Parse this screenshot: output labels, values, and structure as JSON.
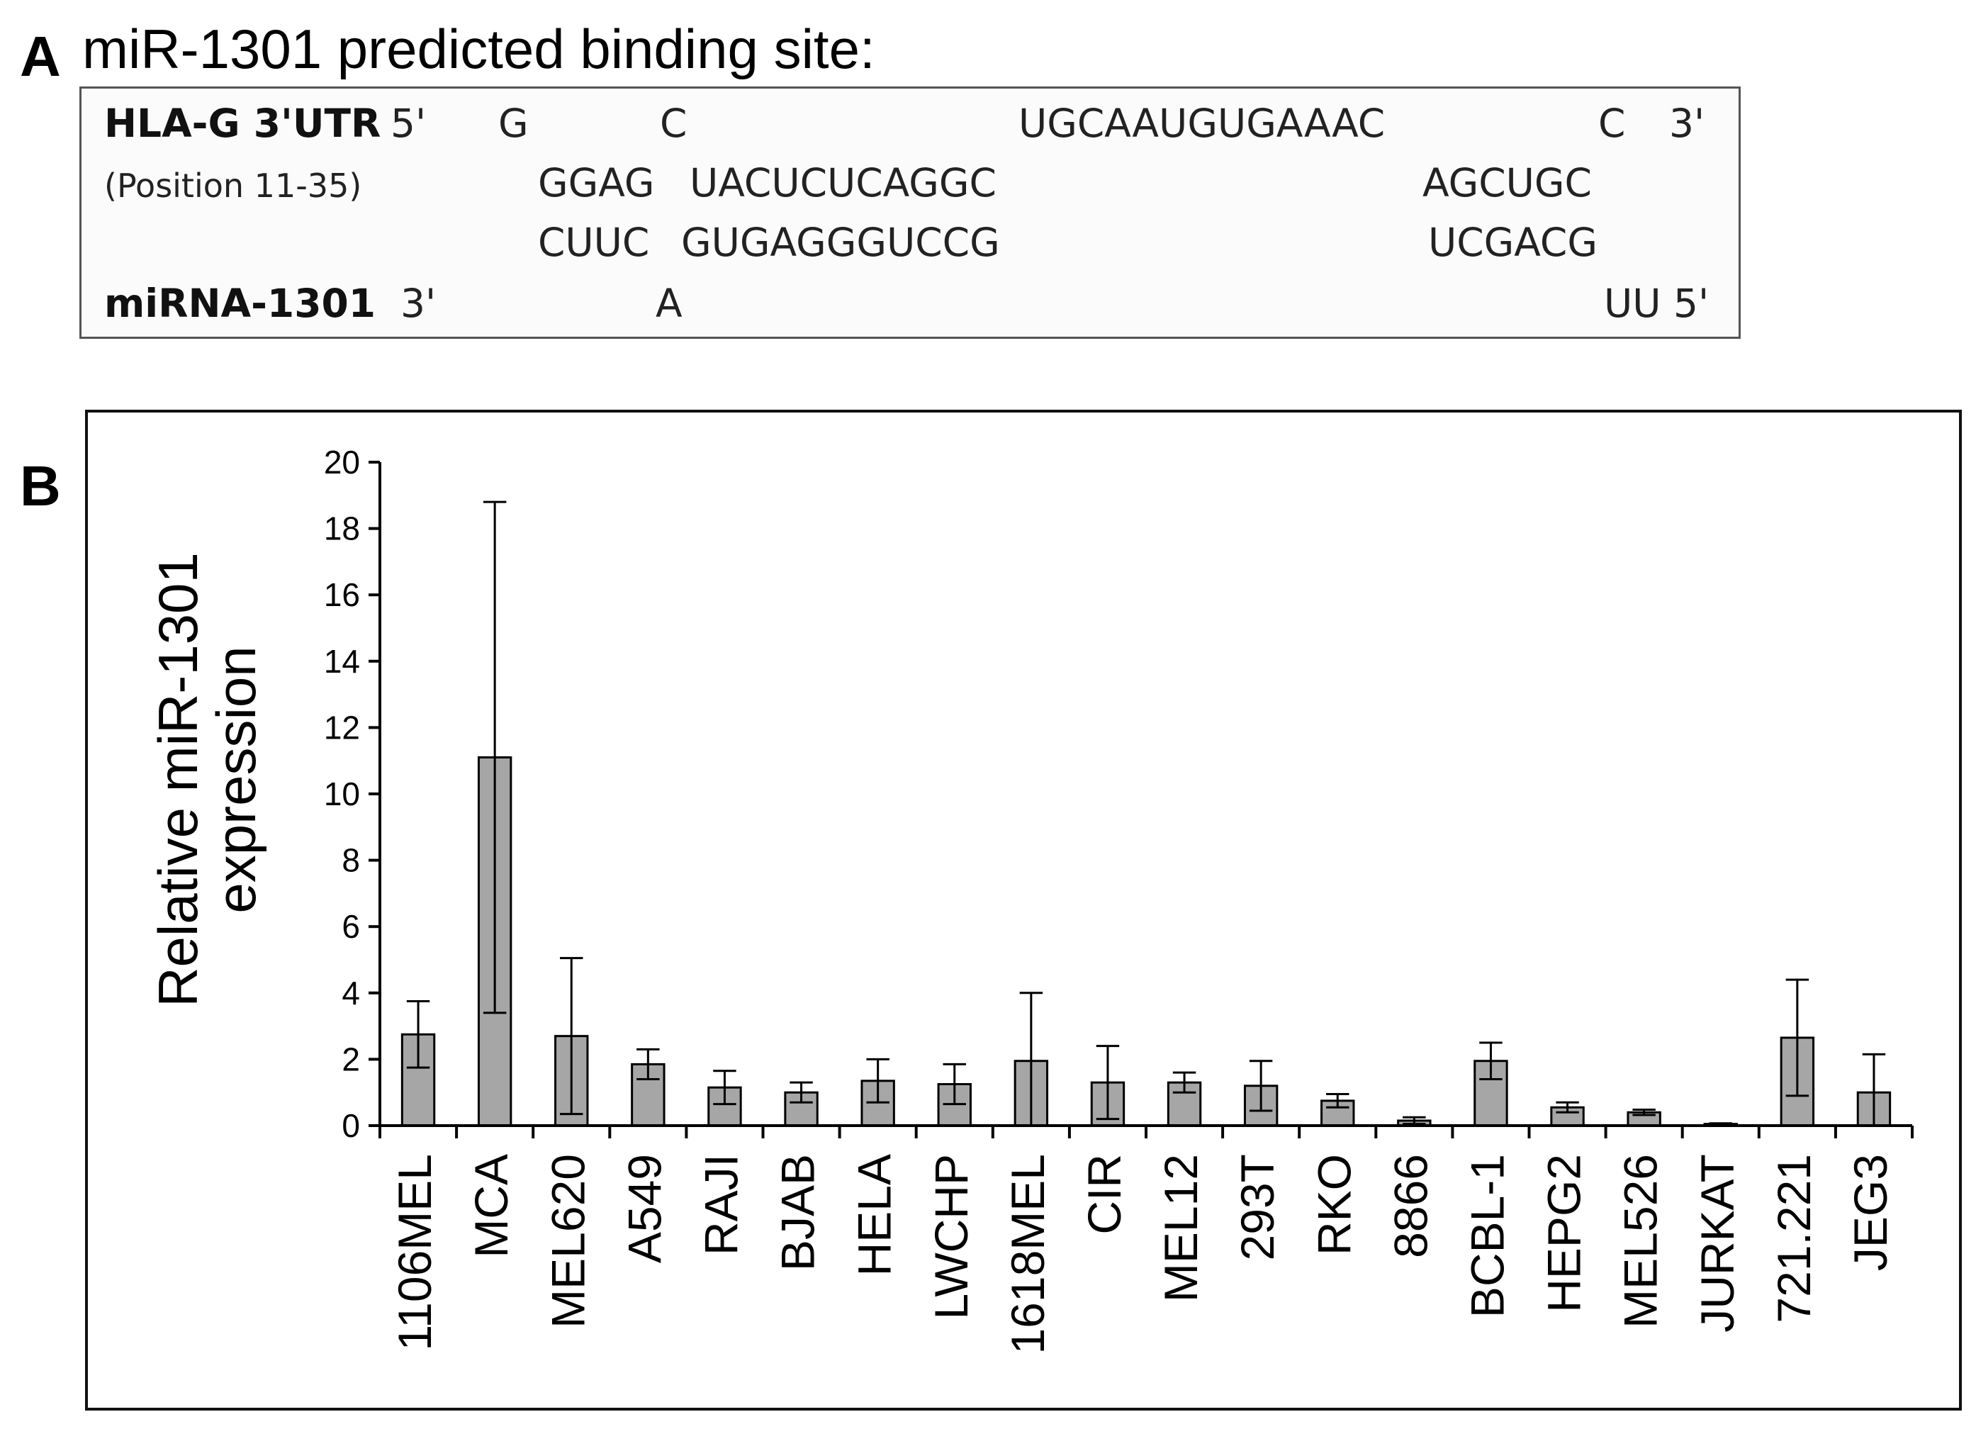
{
  "panel_a": {
    "letter": "A",
    "title": "miR-1301 predicted binding site:",
    "rows": {
      "utr_label": "HLA-G 3'UTR",
      "utr_5": "5'",
      "utr_g": "G",
      "utr_c": "C",
      "utr_loop": "UGCAAUGUGAAAC",
      "utr_c2": "C",
      "utr_3": "3'",
      "position": "(Position 11-35)",
      "utr_pair1": "GGAG",
      "utr_pair2": "UACUCUCAGGC",
      "utr_pair3": "AGCUGC",
      "mir_pair1": "CUUC",
      "mir_pair2": "GUGAGGGUCCG",
      "mir_pair3": "UCGACG",
      "mir_label": "miRNA-1301",
      "mir_3": "3'",
      "mir_a": "A",
      "mir_uu5": "UU 5'"
    }
  },
  "panel_b": {
    "letter": "B"
  },
  "chart_data": {
    "type": "bar",
    "title": "",
    "xlabel": "",
    "ylabel": "Relative miR-1301 expression",
    "ylabel_lines": [
      "Relative miR-1301",
      "expression"
    ],
    "ylim": [
      0,
      20
    ],
    "yticks": [
      0,
      2,
      4,
      6,
      8,
      10,
      12,
      14,
      16,
      18,
      20
    ],
    "grid": false,
    "bar_color": "#a6a6a6",
    "categories": [
      "1106MEL",
      "MCA",
      "MEL620",
      "A549",
      "RAJI",
      "BJAB",
      "HELA",
      "LWCHP",
      "1618MEL",
      "CIR",
      "MEL12",
      "293T",
      "RKO",
      "8866",
      "BCBL-1",
      "HEPG2",
      "MEL526",
      "JURKAT",
      "721.221",
      "JEG3"
    ],
    "values": [
      2.75,
      11.1,
      2.7,
      1.85,
      1.15,
      1.0,
      1.35,
      1.25,
      1.95,
      1.3,
      1.3,
      1.2,
      0.75,
      0.15,
      1.95,
      0.55,
      0.4,
      0.05,
      2.65,
      1.0
    ],
    "errors": [
      1.0,
      7.7,
      2.35,
      0.45,
      0.5,
      0.3,
      0.65,
      0.6,
      2.05,
      1.1,
      0.3,
      0.75,
      0.2,
      0.1,
      0.55,
      0.15,
      0.08,
      0.02,
      1.75,
      1.15
    ]
  }
}
